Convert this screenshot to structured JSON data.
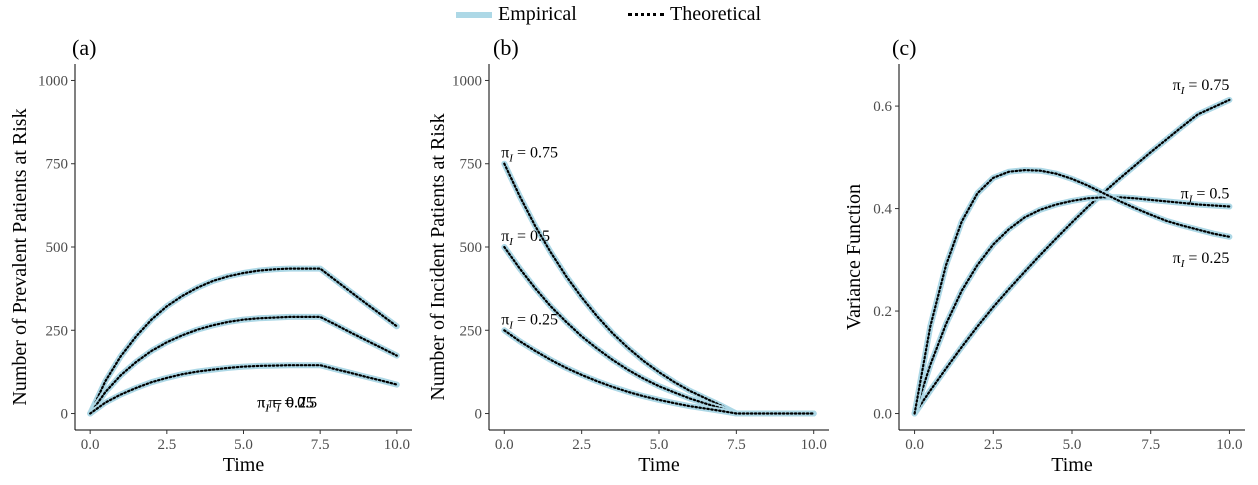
{
  "legend": {
    "empirical_label": "Empirical",
    "theoretical_label": "Theoretical",
    "empirical_color": "#add8e6",
    "theoretical_color": "#000000"
  },
  "chart_data": [
    {
      "type": "line",
      "tag": "(a)",
      "xlabel": "Time",
      "ylabel": "Number of Prevalent Patients at Risk",
      "xlim": [
        0,
        10
      ],
      "ylim": [
        0,
        1000
      ],
      "xticks": [
        "0.0",
        "2.5",
        "5.0",
        "7.5",
        "10.0"
      ],
      "yticks": [
        "0",
        "250",
        "500",
        "750",
        "1000"
      ],
      "grid": false,
      "x": [
        0,
        0.5,
        1,
        1.5,
        2,
        2.5,
        3,
        3.5,
        4,
        4.5,
        5,
        5.5,
        6,
        6.5,
        7,
        7.5,
        8,
        8.5,
        9,
        9.5,
        10
      ],
      "series": [
        {
          "label": "π_I = 0.25",
          "values": [
            0,
            98,
            172,
            232,
            282,
            322,
            353,
            378,
            398,
            412,
            422,
            429,
            433,
            435,
            435,
            435,
            400,
            365,
            330,
            296,
            262
          ]
        },
        {
          "label": "π_I = 0.5",
          "values": [
            0,
            65,
            115,
            155,
            188,
            214,
            235,
            252,
            265,
            275,
            282,
            286,
            288,
            290,
            290,
            290,
            267,
            243,
            220,
            197,
            174
          ]
        },
        {
          "label": "π_I = 0.75",
          "values": [
            0,
            33,
            57,
            77,
            94,
            107,
            118,
            126,
            132,
            137,
            141,
            143,
            144,
            145,
            145,
            145,
            133,
            122,
            110,
            99,
            87
          ]
        }
      ]
    },
    {
      "type": "line",
      "tag": "(b)",
      "xlabel": "Time",
      "ylabel": "Number of Incident Patients at Risk",
      "xlim": [
        0,
        10
      ],
      "ylim": [
        0,
        1000
      ],
      "xticks": [
        "0.0",
        "2.5",
        "5.0",
        "7.5",
        "10.0"
      ],
      "yticks": [
        "0",
        "250",
        "500",
        "750",
        "1000"
      ],
      "grid": false,
      "x": [
        0,
        0.5,
        1,
        1.5,
        2,
        2.5,
        3,
        3.5,
        4,
        4.5,
        5,
        5.5,
        6,
        6.5,
        7,
        7.5,
        8,
        8.5,
        9,
        9.5,
        10
      ],
      "series": [
        {
          "label": "π_I = 0.75",
          "values": [
            750,
            652,
            563,
            484,
            412,
            349,
            292,
            241,
            197,
            158,
            124,
            94,
            68,
            46,
            24,
            0,
            0,
            0,
            0,
            0,
            0
          ]
        },
        {
          "label": "π_I = 0.5",
          "values": [
            500,
            435,
            376,
            322,
            275,
            232,
            195,
            161,
            131,
            105,
            82,
            63,
            45,
            30,
            16,
            0,
            0,
            0,
            0,
            0,
            0
          ]
        },
        {
          "label": "π_I = 0.25",
          "values": [
            250,
            217,
            188,
            161,
            137,
            116,
            97,
            80,
            65,
            52,
            41,
            31,
            22,
            15,
            8,
            0,
            0,
            0,
            0,
            0,
            0
          ]
        }
      ]
    },
    {
      "type": "line",
      "tag": "(c)",
      "xlabel": "Time",
      "ylabel": "Variance Function",
      "xlim": [
        0,
        10
      ],
      "ylim": [
        0,
        0.65
      ],
      "xticks": [
        "0.0",
        "2.5",
        "5.0",
        "7.5",
        "10.0"
      ],
      "yticks": [
        "0.0",
        "0.2",
        "0.4",
        "0.6"
      ],
      "ytick_values": [
        0,
        0.2,
        0.4,
        0.6
      ],
      "grid": false,
      "x": [
        0,
        0.5,
        1,
        1.5,
        2,
        2.5,
        3,
        3.5,
        4,
        4.5,
        5,
        5.5,
        6,
        6.5,
        7,
        7.5,
        8,
        8.5,
        9,
        9.5,
        10
      ],
      "series": [
        {
          "label": "π_I = 0.75",
          "values": [
            0,
            0.045,
            0.088,
            0.13,
            0.17,
            0.208,
            0.243,
            0.277,
            0.31,
            0.342,
            0.373,
            0.403,
            0.431,
            0.458,
            0.484,
            0.51,
            0.535,
            0.56,
            0.584,
            0.598,
            0.612
          ]
        },
        {
          "label": "π_I = 0.5",
          "values": [
            0,
            0.095,
            0.175,
            0.24,
            0.29,
            0.33,
            0.36,
            0.383,
            0.398,
            0.408,
            0.415,
            0.42,
            0.422,
            0.422,
            0.42,
            0.417,
            0.414,
            0.411,
            0.408,
            0.406,
            0.404
          ]
        },
        {
          "label": "π_I = 0.25",
          "values": [
            0,
            0.17,
            0.29,
            0.375,
            0.43,
            0.46,
            0.472,
            0.475,
            0.474,
            0.468,
            0.458,
            0.445,
            0.43,
            0.415,
            0.401,
            0.388,
            0.376,
            0.367,
            0.359,
            0.351,
            0.345
          ]
        }
      ]
    }
  ]
}
